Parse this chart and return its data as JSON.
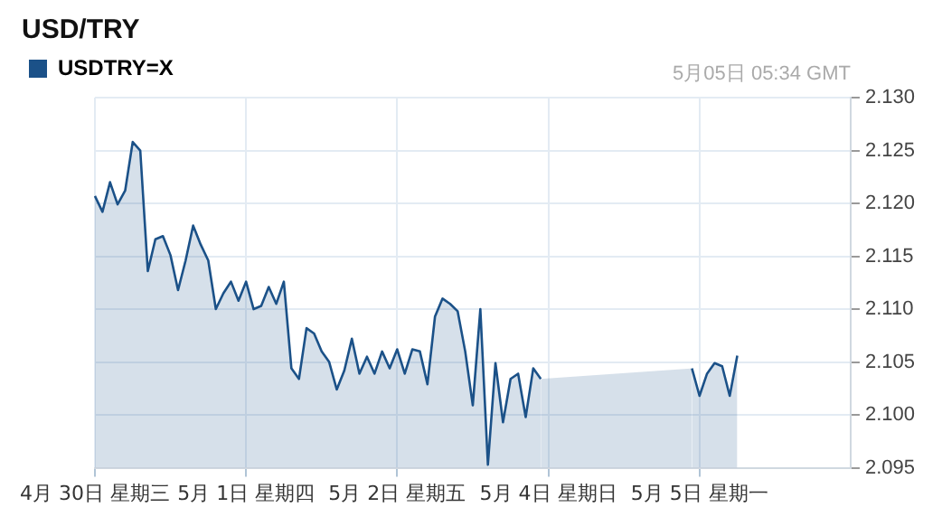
{
  "chart_data": {
    "type": "area",
    "title": "USD/TRY",
    "annotations": [
      "5月05日 05:34 GMT"
    ],
    "categories": [
      "4月 30日 星期三",
      null,
      null,
      null,
      null,
      null,
      null,
      null,
      null,
      null,
      null,
      null,
      null,
      null,
      null,
      null,
      null,
      null,
      null,
      null,
      "5月 1日 星期四",
      null,
      null,
      null,
      null,
      null,
      null,
      null,
      null,
      null,
      null,
      null,
      null,
      null,
      null,
      null,
      null,
      null,
      null,
      null,
      "5月 2日 星期五",
      null,
      null,
      null,
      null,
      null,
      null,
      null,
      null,
      null,
      null,
      null,
      null,
      null,
      null,
      null,
      null,
      null,
      null,
      null,
      "5月 4日 星期日",
      null,
      null,
      null,
      null,
      null,
      null,
      null,
      null,
      null,
      null,
      null,
      null,
      null,
      null,
      null,
      null,
      null,
      null,
      null,
      "5月 5日 星期一",
      null,
      null,
      null,
      null,
      null,
      null,
      null,
      null,
      null,
      null,
      null,
      null,
      null,
      null,
      null,
      null,
      null,
      null,
      null,
      null
    ],
    "series": [
      {
        "name": "USDTRY=X",
        "color": "#1b5188",
        "values": [
          2.1207,
          2.1192,
          2.122,
          2.1199,
          2.1212,
          2.1258,
          2.125,
          2.1136,
          2.1166,
          2.1169,
          2.1151,
          2.1118,
          2.1146,
          2.1179,
          2.1161,
          2.1146,
          2.11,
          2.1115,
          2.1126,
          2.1108,
          2.1126,
          2.11,
          2.1103,
          2.1121,
          2.1105,
          2.1126,
          2.1044,
          2.1034,
          2.1082,
          2.1077,
          2.106,
          2.105,
          2.1024,
          2.1042,
          2.1072,
          2.1039,
          2.1055,
          2.1039,
          2.106,
          2.1044,
          2.1062,
          2.1039,
          2.1062,
          2.106,
          2.1029,
          2.1093,
          2.111,
          2.1105,
          2.1098,
          2.106,
          2.1009,
          2.11,
          2.0953,
          2.1049,
          2.0993,
          2.1034,
          2.1039,
          2.0998,
          2.1044,
          2.1034,
          null,
          null,
          null,
          null,
          null,
          null,
          null,
          null,
          null,
          null,
          null,
          null,
          null,
          null,
          null,
          null,
          null,
          null,
          null,
          2.1044,
          2.1018,
          2.1039,
          2.1049,
          2.1046,
          2.1018,
          2.1056,
          null,
          null,
          null,
          null,
          null,
          null,
          null,
          null,
          null,
          null,
          null,
          null,
          null,
          null,
          null
        ]
      }
    ],
    "ylim": [
      2.095,
      2.13
    ],
    "yticks": [
      {
        "value": 2.095,
        "label": "2.095"
      },
      {
        "value": 2.1,
        "label": "2.100"
      },
      {
        "value": 2.105,
        "label": "2.105"
      },
      {
        "value": 2.11,
        "label": "2.110"
      },
      {
        "value": 2.115,
        "label": "2.115"
      },
      {
        "value": 2.12,
        "label": "2.120"
      },
      {
        "value": 2.125,
        "label": "2.125"
      },
      {
        "value": 2.13,
        "label": "2.130"
      }
    ],
    "grid": true,
    "legend": "top left",
    "marker": "none",
    "line_style": "solid"
  }
}
